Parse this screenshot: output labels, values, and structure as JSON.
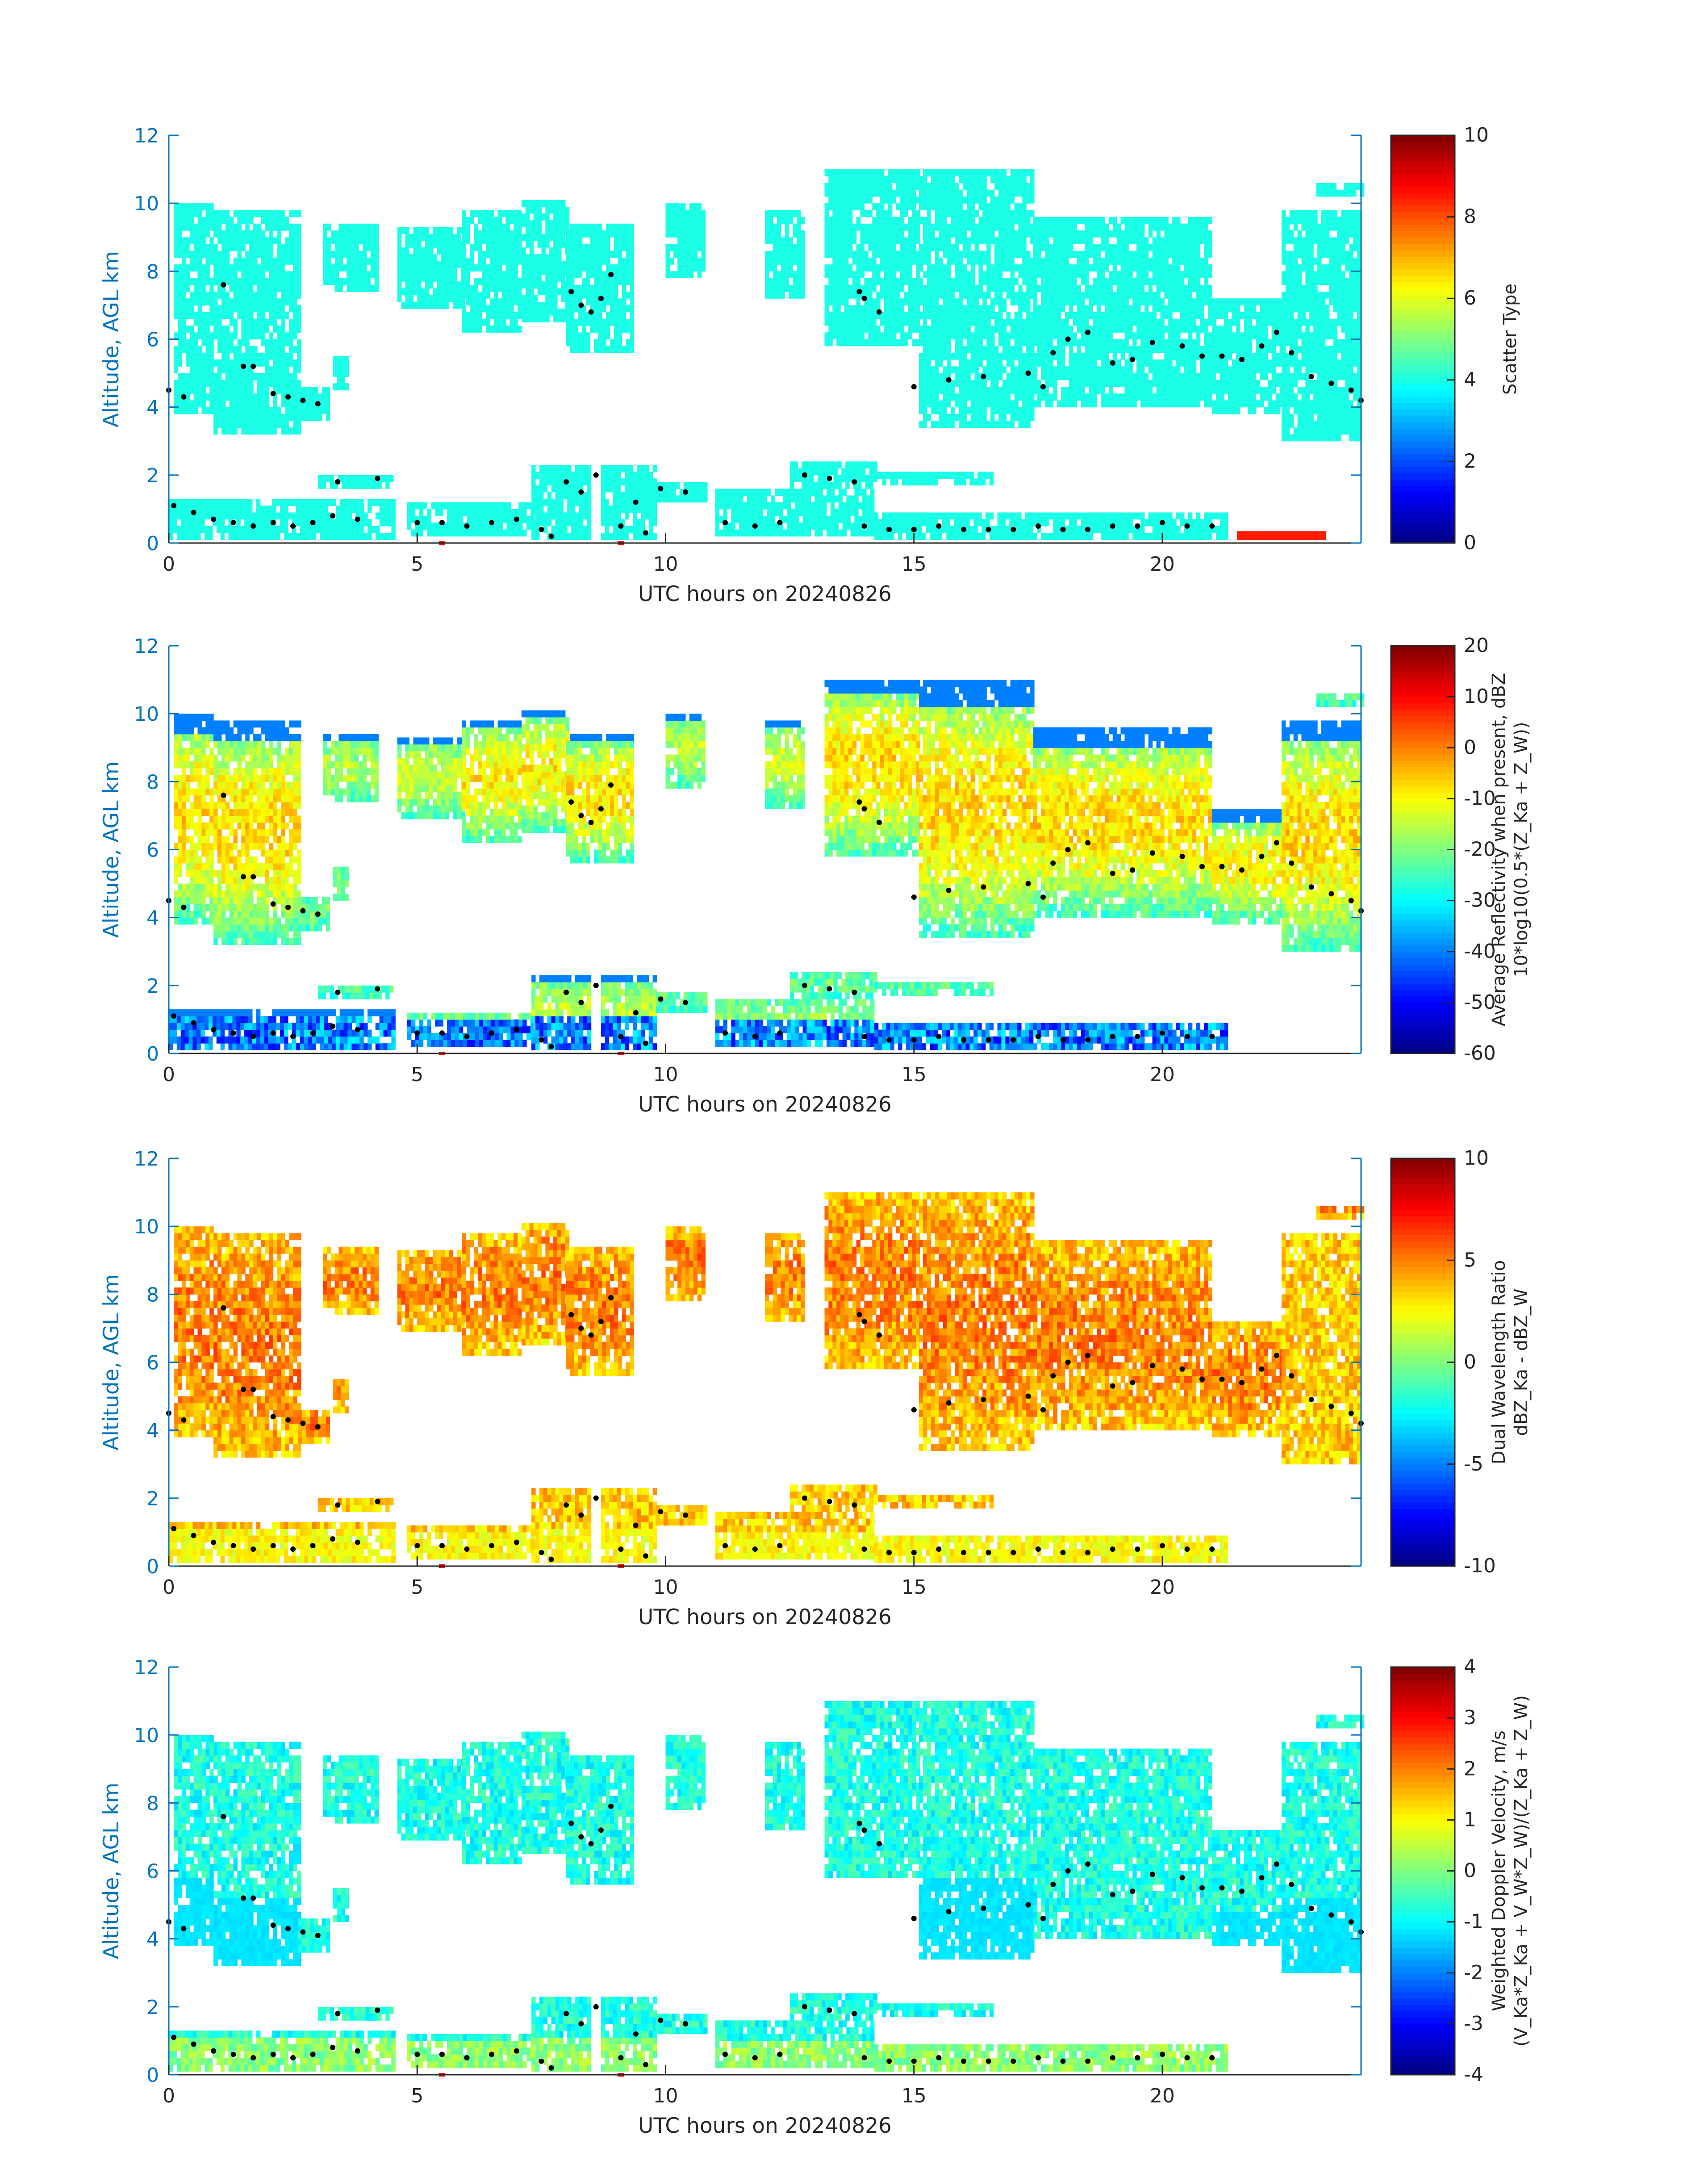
{
  "figure": {
    "type": "multi-panel radar time-height plot",
    "date": "20240826"
  },
  "chart_data": [
    {
      "type": "heatmap",
      "xlabel": "UTC hours on 20240826",
      "ylabel": "Altitude, AGL km",
      "xlim": [
        0,
        24
      ],
      "ylim": [
        0,
        12
      ],
      "xticks": [
        "0",
        "5",
        "10",
        "15",
        "20"
      ],
      "yticks": [
        "0",
        "2",
        "4",
        "6",
        "8",
        "10",
        "12"
      ],
      "colorbar": {
        "label_lines": [
          "Scatter Type"
        ],
        "range": [
          0,
          10
        ],
        "ticks": [
          "0",
          "2",
          "4",
          "6",
          "8",
          "10"
        ]
      },
      "fill_value": 4,
      "ground_value": 8.5
    },
    {
      "type": "heatmap",
      "xlabel": "UTC hours on 20240826",
      "ylabel": "Altitude, AGL km",
      "xlim": [
        0,
        24
      ],
      "ylim": [
        0,
        12
      ],
      "xticks": [
        "0",
        "5",
        "10",
        "15",
        "20"
      ],
      "yticks": [
        "0",
        "2",
        "4",
        "6",
        "8",
        "10",
        "12"
      ],
      "colorbar": {
        "label_lines": [
          "Average Reflectivity when present, dBZ",
          "10*log10(0.5*(Z_Ka + Z_W))"
        ],
        "range": [
          -60,
          20
        ],
        "ticks": [
          "-60",
          "-50",
          "-40",
          "-30",
          "-20",
          "-10",
          "0",
          "10",
          "20"
        ]
      }
    },
    {
      "type": "heatmap",
      "xlabel": "UTC hours on 20240826",
      "ylabel": "Altitude, AGL km",
      "xlim": [
        0,
        24
      ],
      "ylim": [
        0,
        12
      ],
      "xticks": [
        "0",
        "5",
        "10",
        "15",
        "20"
      ],
      "yticks": [
        "0",
        "2",
        "4",
        "6",
        "8",
        "10",
        "12"
      ],
      "colorbar": {
        "label_lines": [
          "Dual Wavelength Ratio",
          "dBZ_Ka - dBZ_W"
        ],
        "range": [
          -10,
          10
        ],
        "ticks": [
          "-10",
          "-5",
          "0",
          "5",
          "10"
        ]
      }
    },
    {
      "type": "heatmap",
      "xlabel": "UTC hours on 20240826",
      "ylabel": "Altitude, AGL km",
      "xlim": [
        0,
        24
      ],
      "ylim": [
        0,
        12
      ],
      "xticks": [
        "0",
        "5",
        "10",
        "15",
        "20"
      ],
      "yticks": [
        "0",
        "2",
        "4",
        "6",
        "8",
        "10",
        "12"
      ],
      "colorbar": {
        "label_lines": [
          "Weighted Doppler Velocity, m/s",
          "(V_Ka*Z_Ka + V_W*Z_W)/(Z_Ka + Z_W)"
        ],
        "range": [
          -4,
          4
        ],
        "ticks": [
          "-4",
          "-3",
          "-2",
          "-1",
          "0",
          "1",
          "2",
          "3",
          "4"
        ]
      }
    }
  ],
  "cloud_regions": [
    {
      "t0": 0.1,
      "t1": 0.9,
      "zb": 3.8,
      "zt": 10.0
    },
    {
      "t0": 0.9,
      "t1": 2.6,
      "zb": 3.2,
      "zt": 9.8
    },
    {
      "t0": 2.6,
      "t1": 3.2,
      "zb": 3.6,
      "zt": 4.6
    },
    {
      "t0": 3.3,
      "t1": 3.6,
      "zb": 4.5,
      "zt": 5.5
    },
    {
      "t0": 3.1,
      "t1": 4.2,
      "zb": 7.4,
      "zt": 9.3
    },
    {
      "t0": 4.6,
      "t1": 5.9,
      "zb": 6.9,
      "zt": 9.3
    },
    {
      "t0": 5.9,
      "t1": 7.1,
      "zb": 6.2,
      "zt": 9.8
    },
    {
      "t0": 7.1,
      "t1": 8.0,
      "zb": 6.5,
      "zt": 10.1
    },
    {
      "t0": 8.0,
      "t1": 9.3,
      "zb": 5.6,
      "zt": 9.4
    },
    {
      "t0": 10.0,
      "t1": 10.8,
      "zb": 7.8,
      "zt": 10.0
    },
    {
      "t0": 12.0,
      "t1": 12.8,
      "zb": 7.2,
      "zt": 9.8
    },
    {
      "t0": 13.2,
      "t1": 15.1,
      "zb": 5.8,
      "zt": 11.0
    },
    {
      "t0": 15.1,
      "t1": 17.4,
      "zb": 3.4,
      "zt": 10.9
    },
    {
      "t0": 17.4,
      "t1": 21.0,
      "zb": 4.0,
      "zt": 9.5
    },
    {
      "t0": 21.0,
      "t1": 22.4,
      "zb": 3.8,
      "zt": 7.1
    },
    {
      "t0": 22.4,
      "t1": 24.0,
      "zb": 3.0,
      "zt": 9.7
    },
    {
      "t0": 23.1,
      "t1": 24.0,
      "zb": 10.2,
      "zt": 10.6
    },
    {
      "t0": 0.0,
      "t1": 4.5,
      "zb": 0.1,
      "zt": 1.2
    },
    {
      "t0": 3.0,
      "t1": 4.5,
      "zb": 1.6,
      "zt": 2.0
    },
    {
      "t0": 4.8,
      "t1": 7.3,
      "zb": 0.2,
      "zt": 1.2
    },
    {
      "t0": 7.3,
      "t1": 8.5,
      "zb": 0.1,
      "zt": 2.2
    },
    {
      "t0": 8.7,
      "t1": 9.8,
      "zb": 0.1,
      "zt": 2.2
    },
    {
      "t0": 9.8,
      "t1": 10.8,
      "zb": 1.2,
      "zt": 1.8
    },
    {
      "t0": 11.0,
      "t1": 14.2,
      "zb": 0.2,
      "zt": 1.6
    },
    {
      "t0": 12.5,
      "t1": 14.2,
      "zb": 1.6,
      "zt": 2.3
    },
    {
      "t0": 14.2,
      "t1": 16.6,
      "zb": 1.7,
      "zt": 2.1
    },
    {
      "t0": 14.2,
      "t1": 21.3,
      "zb": 0.1,
      "zt": 0.8
    }
  ],
  "cloud_base_points": [
    [
      0.0,
      4.5
    ],
    [
      0.3,
      4.3
    ],
    [
      1.1,
      7.6
    ],
    [
      1.5,
      5.2
    ],
    [
      1.7,
      5.2
    ],
    [
      2.1,
      4.4
    ],
    [
      2.4,
      4.3
    ],
    [
      2.7,
      4.2
    ],
    [
      3.0,
      4.1
    ],
    [
      8.1,
      7.4
    ],
    [
      8.3,
      7.0
    ],
    [
      8.5,
      6.8
    ],
    [
      8.7,
      7.2
    ],
    [
      8.9,
      7.9
    ],
    [
      13.9,
      7.4
    ],
    [
      14.0,
      7.2
    ],
    [
      14.3,
      6.8
    ],
    [
      15.0,
      4.6
    ],
    [
      15.7,
      4.8
    ],
    [
      16.4,
      4.9
    ],
    [
      17.3,
      5.0
    ],
    [
      17.6,
      4.6
    ],
    [
      17.8,
      5.6
    ],
    [
      18.1,
      6.0
    ],
    [
      18.5,
      6.2
    ],
    [
      19.0,
      5.3
    ],
    [
      19.4,
      5.4
    ],
    [
      19.8,
      5.9
    ],
    [
      20.4,
      5.8
    ],
    [
      20.8,
      5.5
    ],
    [
      21.2,
      5.5
    ],
    [
      21.6,
      5.4
    ],
    [
      22.0,
      5.8
    ],
    [
      22.3,
      6.2
    ],
    [
      22.6,
      5.6
    ],
    [
      23.0,
      4.9
    ],
    [
      23.4,
      4.7
    ],
    [
      23.8,
      4.5
    ],
    [
      24.0,
      4.2
    ],
    [
      0.1,
      1.1
    ],
    [
      0.5,
      0.9
    ],
    [
      0.9,
      0.7
    ],
    [
      1.3,
      0.6
    ],
    [
      1.7,
      0.5
    ],
    [
      2.1,
      0.6
    ],
    [
      2.5,
      0.5
    ],
    [
      2.9,
      0.6
    ],
    [
      3.3,
      0.8
    ],
    [
      3.4,
      1.8
    ],
    [
      3.8,
      0.7
    ],
    [
      4.2,
      1.9
    ],
    [
      5.0,
      0.6
    ],
    [
      5.5,
      0.6
    ],
    [
      6.0,
      0.5
    ],
    [
      6.5,
      0.6
    ],
    [
      7.0,
      0.7
    ],
    [
      7.5,
      0.4
    ],
    [
      7.7,
      0.2
    ],
    [
      8.0,
      1.8
    ],
    [
      8.3,
      1.5
    ],
    [
      8.6,
      2.0
    ],
    [
      9.1,
      0.5
    ],
    [
      9.4,
      1.2
    ],
    [
      9.6,
      0.3
    ],
    [
      9.9,
      1.6
    ],
    [
      10.4,
      1.5
    ],
    [
      11.2,
      0.6
    ],
    [
      11.8,
      0.5
    ],
    [
      12.3,
      0.6
    ],
    [
      12.8,
      2.0
    ],
    [
      13.3,
      1.9
    ],
    [
      13.8,
      1.8
    ],
    [
      14.0,
      0.5
    ],
    [
      14.5,
      0.4
    ],
    [
      15.0,
      0.4
    ],
    [
      15.5,
      0.5
    ],
    [
      16.0,
      0.4
    ],
    [
      16.5,
      0.4
    ],
    [
      17.0,
      0.4
    ],
    [
      17.5,
      0.5
    ],
    [
      18.0,
      0.4
    ],
    [
      18.5,
      0.4
    ],
    [
      19.0,
      0.5
    ],
    [
      19.5,
      0.5
    ],
    [
      20.0,
      0.6
    ],
    [
      20.5,
      0.5
    ],
    [
      21.0,
      0.5
    ]
  ],
  "red_marks_x": [
    5.5,
    9.1
  ]
}
